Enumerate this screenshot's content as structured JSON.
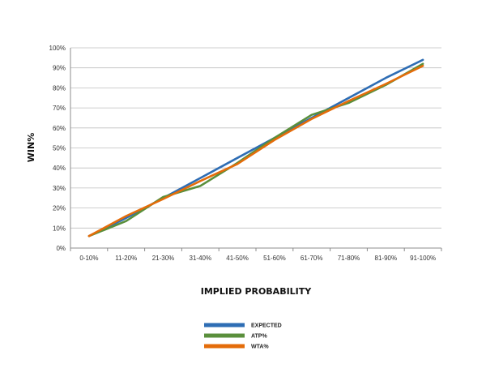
{
  "chart_data": {
    "type": "line",
    "xlabel": "IMPLIED PROBABILITY",
    "ylabel": "WIN%",
    "categories": [
      "0-10%",
      "11-20%",
      "21-30%",
      "31-40%",
      "41-50%",
      "51-60%",
      "61-70%",
      "71-80%",
      "81-90%",
      "91-100%"
    ],
    "ylim": [
      0,
      100
    ],
    "yticks": [
      "0%",
      "10%",
      "20%",
      "30%",
      "40%",
      "50%",
      "60%",
      "70%",
      "80%",
      "90%",
      "100%"
    ],
    "grid": true,
    "legend_position": "bottom",
    "series": [
      {
        "name": "EXPECTED",
        "color": "#2E6DB4",
        "values": [
          6,
          15,
          25,
          35,
          45,
          55,
          65,
          75,
          85,
          94
        ]
      },
      {
        "name": "ATP%",
        "color": "#5A8F3C",
        "values": [
          6,
          13.5,
          25.5,
          31,
          42.5,
          55,
          66.5,
          72.5,
          81.5,
          92
        ]
      },
      {
        "name": "WTA%",
        "color": "#E46C0A",
        "values": [
          6,
          16,
          24.5,
          33.5,
          42,
          54,
          64.5,
          73.5,
          82,
          91
        ]
      }
    ]
  }
}
